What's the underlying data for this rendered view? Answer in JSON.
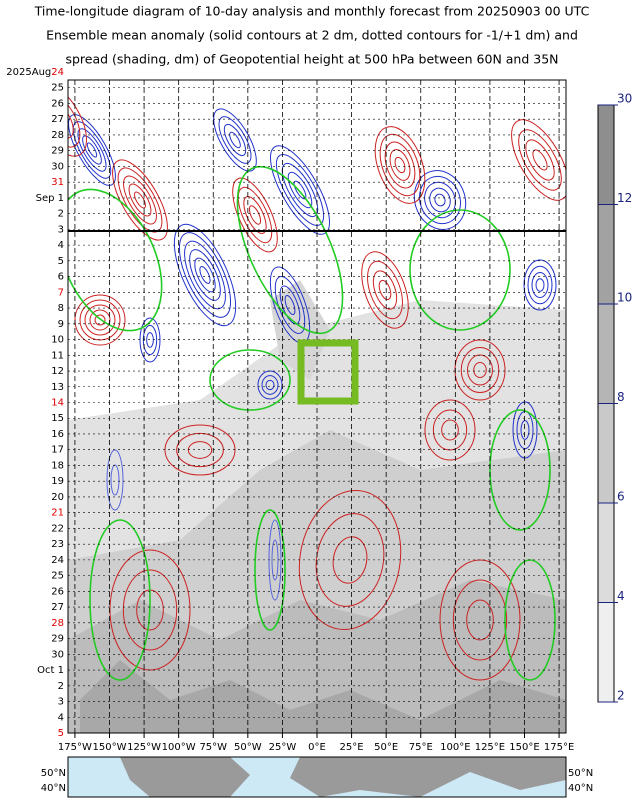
{
  "chart_data": {
    "type": "hovmoller",
    "title": [
      "Time-longitude diagram of 10-day analysis and monthly forecast from 20250903 00 UTC",
      "Ensemble mean anomaly (solid contours at 2 dm, dotted contours for -1/+1 dm) and",
      "spread (shading, dm) of Geopotential height at 500 hPa between 60N and 35N"
    ],
    "y_first_prefix": "2025Aug",
    "y_labels": [
      "24",
      "25",
      "26",
      "27",
      "28",
      "29",
      "30",
      "31",
      "Sep 1",
      "2",
      "3",
      "4",
      "5",
      "6",
      "7",
      "8",
      "9",
      "10",
      "11",
      "12",
      "13",
      "14",
      "15",
      "16",
      "17",
      "18",
      "19",
      "20",
      "21",
      "22",
      "23",
      "24",
      "25",
      "26",
      "27",
      "28",
      "29",
      "30",
      "Oct 1",
      "2",
      "3",
      "4",
      "5"
    ],
    "y_highlight": [
      0,
      7,
      14,
      21,
      28,
      35,
      42
    ],
    "highlight_color": "#e00000",
    "xlim": [
      -180,
      180
    ],
    "xticks": [
      {
        "value": -175,
        "label": "175°W"
      },
      {
        "value": -150,
        "label": "150°W"
      },
      {
        "value": -125,
        "label": "125°W"
      },
      {
        "value": -100,
        "label": "100°W"
      },
      {
        "value": -75,
        "label": "75°W"
      },
      {
        "value": -50,
        "label": "50°W"
      },
      {
        "value": -25,
        "label": "25°W"
      },
      {
        "value": 0,
        "label": "0°E"
      },
      {
        "value": 25,
        "label": "25°E"
      },
      {
        "value": 50,
        "label": "50°E"
      },
      {
        "value": 75,
        "label": "75°E"
      },
      {
        "value": 100,
        "label": "100°E"
      },
      {
        "value": 125,
        "label": "125°E"
      },
      {
        "value": 150,
        "label": "150°E"
      },
      {
        "value": 175,
        "label": "175°E"
      }
    ],
    "grid": true,
    "colorbar": {
      "ticks": [
        2,
        4,
        6,
        8,
        10,
        12,
        30
      ],
      "colors": [
        "#efefef",
        "#dcdcdc",
        "#c9c9c9",
        "#b5b5b5",
        "#a2a2a2",
        "#8e8e8e"
      ]
    },
    "map": {
      "lat_labels": [
        "50°N",
        "40°N"
      ]
    }
  }
}
